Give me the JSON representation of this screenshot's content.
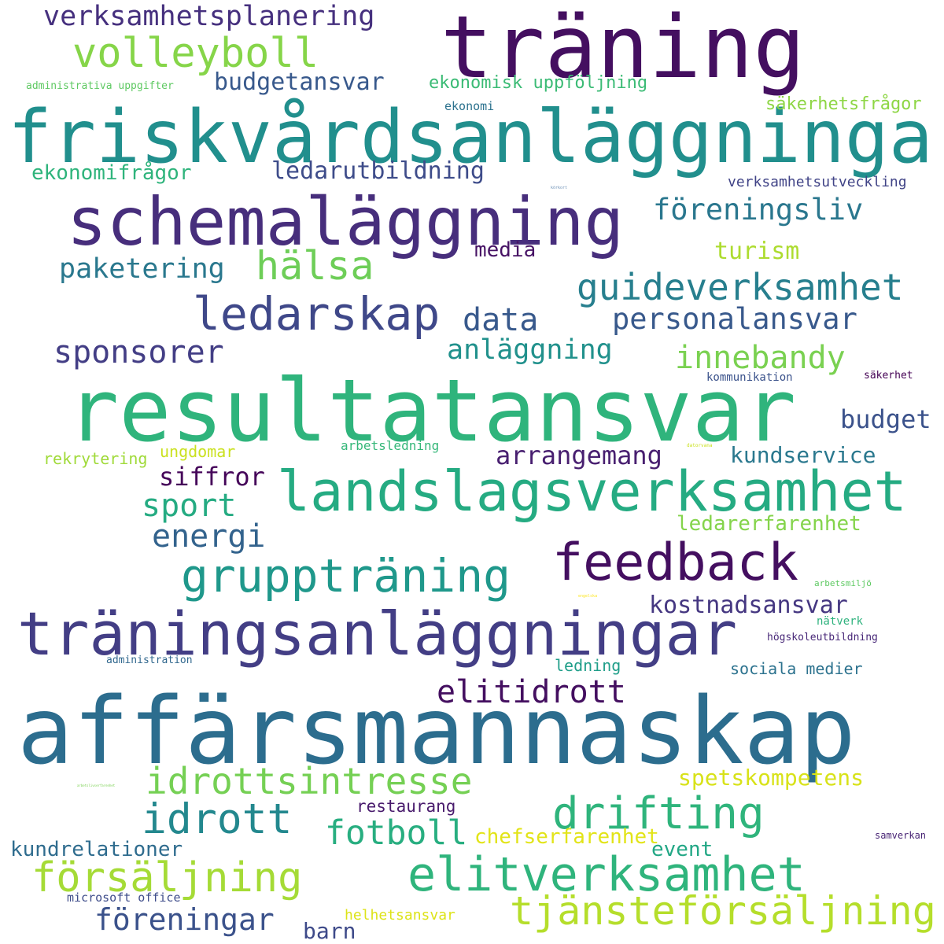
{
  "title": "Word cloud",
  "words": [
    {
      "text": "träning",
      "color": "#440f60"
    },
    {
      "text": "friskvårdsanläggningar",
      "color": "#218f8d"
    },
    {
      "text": "schemaläggning",
      "color": "#472e7c"
    },
    {
      "text": "resultatansvar",
      "color": "#2fb47c"
    },
    {
      "text": "affärsmannaskap",
      "color": "#2c6d8e"
    },
    {
      "text": "träningsanläggningar",
      "color": "#433e85"
    },
    {
      "text": "landslagsverksamhet",
      "color": "#25ab82"
    },
    {
      "text": "feedback",
      "color": "#440f60"
    },
    {
      "text": "gruppträning",
      "color": "#1f988b"
    },
    {
      "text": "ledarskap",
      "color": "#3f4889"
    },
    {
      "text": "guideverksamhet",
      "color": "#277f8e"
    },
    {
      "text": "volleyboll",
      "color": "#86d549"
    },
    {
      "text": "hälsa",
      "color": "#6ece58"
    },
    {
      "text": "idrottsintresse",
      "color": "#75d054"
    },
    {
      "text": "idrott",
      "color": "#23888e"
    },
    {
      "text": "drifting",
      "color": "#2fb47c"
    },
    {
      "text": "elitverksamhet",
      "color": "#2fb47c"
    },
    {
      "text": "försäljning",
      "color": "#a5db36"
    },
    {
      "text": "tjänsteförsäljning",
      "color": "#b5de2b"
    },
    {
      "text": "föreningsliv",
      "color": "#2a778e"
    },
    {
      "text": "personalansvar",
      "color": "#38598c"
    },
    {
      "text": "verksamhetsplanering",
      "color": "#46307e"
    },
    {
      "text": "budgetansvar",
      "color": "#38598c"
    },
    {
      "text": "ekonomisk uppföljning",
      "color": "#3bbb75"
    },
    {
      "text": "säkerhetsfrågor",
      "color": "#8ed645"
    },
    {
      "text": "ekonomifrågor",
      "color": "#2fb47c"
    },
    {
      "text": "ledarutbildning",
      "color": "#3e4c8a"
    },
    {
      "text": "paketering",
      "color": "#2a788e"
    },
    {
      "text": "media",
      "color": "#471365"
    },
    {
      "text": "turism",
      "color": "#addc30"
    },
    {
      "text": "data",
      "color": "#38598c"
    },
    {
      "text": "sponsorer",
      "color": "#433e85"
    },
    {
      "text": "anläggning",
      "color": "#21918c"
    },
    {
      "text": "innebandy",
      "color": "#7ad151"
    },
    {
      "text": "budget",
      "color": "#3b528b"
    },
    {
      "text": "arrangemang",
      "color": "#481f70"
    },
    {
      "text": "kundservice",
      "color": "#2a788e"
    },
    {
      "text": "siffror",
      "color": "#450559"
    },
    {
      "text": "sport",
      "color": "#25ab82"
    },
    {
      "text": "energi",
      "color": "#33638d"
    },
    {
      "text": "ledarerfarenhet",
      "color": "#84d44b"
    },
    {
      "text": "kostnadsansvar",
      "color": "#453781"
    },
    {
      "text": "elitidrott",
      "color": "#440f60"
    },
    {
      "text": "fotboll",
      "color": "#28ae80"
    },
    {
      "text": "spetskompetens",
      "color": "#d8e219"
    },
    {
      "text": "restaurang",
      "color": "#481a6c"
    },
    {
      "text": "chefserfarenhet",
      "color": "#e2e418"
    },
    {
      "text": "kundrelationer",
      "color": "#2f6c8e"
    },
    {
      "text": "event",
      "color": "#22a785"
    },
    {
      "text": "föreningar",
      "color": "#3b528b"
    },
    {
      "text": "barn",
      "color": "#3e4a89"
    },
    {
      "text": "helhetsansvar",
      "color": "#dde318"
    },
    {
      "text": "microsoft office",
      "color": "#3e4c8a"
    },
    {
      "text": "administrativa uppgifter",
      "color": "#5ec962"
    },
    {
      "text": "ekonomi",
      "color": "#2c728e"
    },
    {
      "text": "verksamhetsutveckling",
      "color": "#414487"
    },
    {
      "text": "kommunikation",
      "color": "#3b528b"
    },
    {
      "text": "säkerhet",
      "color": "#440154"
    },
    {
      "text": "rekrytering",
      "color": "#a0da39"
    },
    {
      "text": "ungdomar",
      "color": "#cae11f"
    },
    {
      "text": "arbetsledning",
      "color": "#35b779"
    },
    {
      "text": "arbetsmiljö",
      "color": "#5ec962"
    },
    {
      "text": "nätverk",
      "color": "#2db27d"
    },
    {
      "text": "högskoleutbildning",
      "color": "#482878"
    },
    {
      "text": "administration",
      "color": "#31688e"
    },
    {
      "text": "ledning",
      "color": "#1f9e89"
    },
    {
      "text": "sociala medier",
      "color": "#2c728e"
    },
    {
      "text": "samverkan",
      "color": "#482475"
    },
    {
      "text": "datorvana",
      "color": "#cae11f"
    },
    {
      "text": "engelska",
      "color": "#fde725"
    },
    {
      "text": "körkort",
      "color": "#6b8fb5"
    },
    {
      "text": "arbetslivserfarenhet",
      "color": "#7ad151"
    }
  ]
}
